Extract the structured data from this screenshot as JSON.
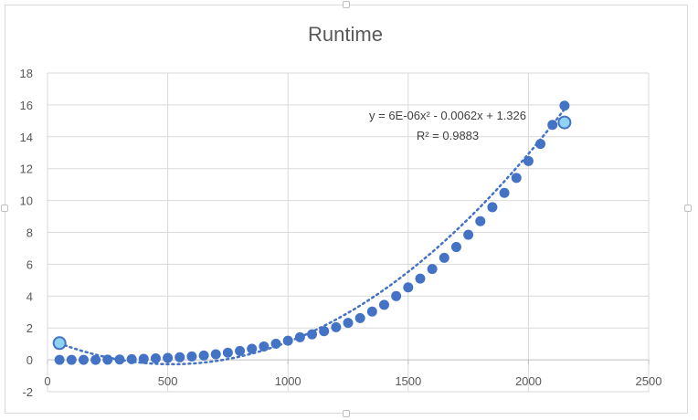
{
  "chart_data": {
    "type": "scatter",
    "title": "Runtime",
    "xlabel": "",
    "ylabel": "",
    "xlim": [
      0,
      2500
    ],
    "ylim": [
      -2,
      18
    ],
    "x_ticks": [
      "0",
      "500",
      "1000",
      "1500",
      "2000",
      "2500"
    ],
    "y_ticks": [
      "-2",
      "0",
      "2",
      "4",
      "6",
      "8",
      "10",
      "12",
      "14",
      "16",
      "18"
    ],
    "grid": true,
    "legend": "none",
    "series": [
      {
        "color": "#4472c4",
        "points": [
          [
            50,
            0.0
          ],
          [
            100,
            0.0
          ],
          [
            150,
            0.0
          ],
          [
            200,
            0.0
          ],
          [
            250,
            0.01
          ],
          [
            300,
            0.02
          ],
          [
            350,
            0.04
          ],
          [
            400,
            0.06
          ],
          [
            450,
            0.09
          ],
          [
            500,
            0.12
          ],
          [
            550,
            0.16
          ],
          [
            600,
            0.21
          ],
          [
            650,
            0.27
          ],
          [
            700,
            0.35
          ],
          [
            750,
            0.45
          ],
          [
            800,
            0.56
          ],
          [
            850,
            0.69
          ],
          [
            900,
            0.84
          ],
          [
            950,
            1.01
          ],
          [
            1000,
            1.2
          ],
          [
            1050,
            1.42
          ],
          [
            1100,
            1.6
          ],
          [
            1150,
            1.8
          ],
          [
            1200,
            2.05
          ],
          [
            1250,
            2.32
          ],
          [
            1300,
            2.62
          ],
          [
            1350,
            3.03
          ],
          [
            1400,
            3.45
          ],
          [
            1450,
            4.0
          ],
          [
            1500,
            4.55
          ],
          [
            1550,
            5.1
          ],
          [
            1600,
            5.7
          ],
          [
            1650,
            6.4
          ],
          [
            1700,
            7.08
          ],
          [
            1750,
            7.85
          ],
          [
            1800,
            8.7
          ],
          [
            1850,
            9.58
          ],
          [
            1900,
            10.48
          ],
          [
            1950,
            11.42
          ],
          [
            2000,
            12.48
          ],
          [
            2050,
            13.55
          ],
          [
            2100,
            14.75
          ],
          [
            2150,
            15.95
          ]
        ],
        "highlighted_points": [
          [
            50,
            1.05
          ],
          [
            2150,
            14.9
          ]
        ]
      }
    ],
    "trendline": {
      "type": "polynomial",
      "order": 2,
      "coefficients": [
        6e-06,
        -0.0062,
        1.326
      ],
      "style": "dotted",
      "color": "#4472c4",
      "x_range": [
        50,
        2150
      ],
      "equation_label": "y = 6E-06x² - 0.0062x + 1.326",
      "r2_label": "R² = 0.9883"
    }
  }
}
